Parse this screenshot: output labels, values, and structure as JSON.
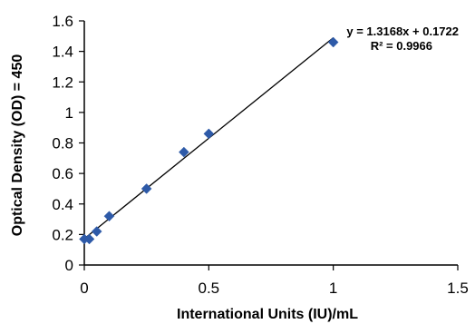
{
  "chart_data": {
    "type": "scatter",
    "title": "",
    "xlabel": "International Units (IU)/mL",
    "ylabel": "Optical Density (OD) = 450",
    "xlim": [
      0,
      1.5
    ],
    "ylim": [
      0,
      1.6
    ],
    "x_ticks": [
      0,
      0.5,
      1,
      1.5
    ],
    "x_tick_labels": [
      "0",
      "0.5",
      "1",
      "1.5"
    ],
    "y_ticks": [
      0,
      0.2,
      0.4,
      0.6,
      0.8,
      1,
      1.2,
      1.4,
      1.6
    ],
    "y_tick_labels": [
      "0",
      "0.2",
      "0.4",
      "0.6",
      "0.8",
      "1",
      "1.2",
      "1.4",
      "1.6"
    ],
    "grid": false,
    "series": [
      {
        "marker": "diamond",
        "color": "#2E5AA8",
        "points": [
          {
            "x": 0.0,
            "y": 0.17
          },
          {
            "x": 0.02,
            "y": 0.17
          },
          {
            "x": 0.05,
            "y": 0.22
          },
          {
            "x": 0.1,
            "y": 0.32
          },
          {
            "x": 0.25,
            "y": 0.5
          },
          {
            "x": 0.4,
            "y": 0.74
          },
          {
            "x": 0.5,
            "y": 0.86
          },
          {
            "x": 1.0,
            "y": 1.46
          }
        ]
      }
    ],
    "trendline": {
      "type": "linear",
      "slope": 1.3168,
      "intercept": 0.1722,
      "x_range": [
        0,
        1.0
      ],
      "color": "#000000"
    },
    "annotations": {
      "equation": "y = 1.3168x + 0.1722",
      "r_squared": "R² = 0.9966"
    },
    "legend": "none"
  }
}
